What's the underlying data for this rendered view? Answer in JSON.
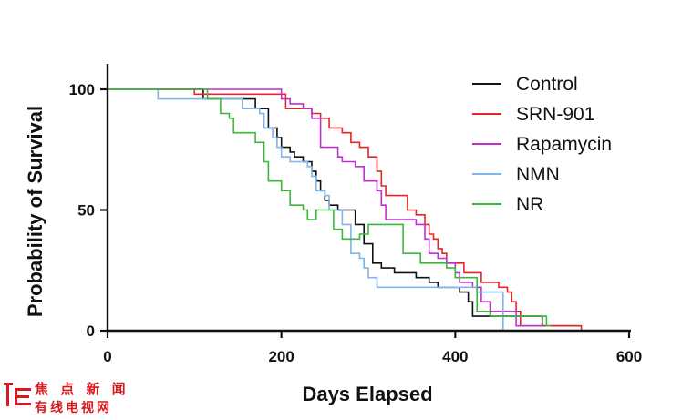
{
  "chart_data": {
    "type": "line",
    "subtype": "kaplan-meier-step",
    "title": "",
    "xlabel": "Days Elapsed",
    "ylabel": "Probability of Survival",
    "xlim": [
      0,
      600
    ],
    "ylim": [
      0,
      100
    ],
    "xticks": [
      "0",
      "200",
      "400",
      "600"
    ],
    "yticks": [
      "0",
      "50",
      "100"
    ],
    "grid": false,
    "legend_position": "top-right",
    "series": [
      {
        "name": "Control",
        "color": "#111111",
        "points": [
          [
            0,
            100
          ],
          [
            105,
            100
          ],
          [
            110,
            96
          ],
          [
            160,
            96
          ],
          [
            170,
            92
          ],
          [
            185,
            84
          ],
          [
            195,
            80
          ],
          [
            200,
            76
          ],
          [
            210,
            74
          ],
          [
            215,
            72
          ],
          [
            225,
            70
          ],
          [
            235,
            66
          ],
          [
            240,
            62
          ],
          [
            245,
            58
          ],
          [
            250,
            54
          ],
          [
            255,
            52
          ],
          [
            265,
            50
          ],
          [
            280,
            50
          ],
          [
            285,
            44
          ],
          [
            295,
            36
          ],
          [
            305,
            28
          ],
          [
            315,
            26
          ],
          [
            330,
            24
          ],
          [
            355,
            22
          ],
          [
            370,
            20
          ],
          [
            380,
            18
          ],
          [
            405,
            16
          ],
          [
            415,
            12
          ],
          [
            420,
            6
          ],
          [
            490,
            6
          ],
          [
            500,
            2
          ],
          [
            540,
            2
          ]
        ]
      },
      {
        "name": "SRN-901",
        "color": "#e8232a",
        "points": [
          [
            0,
            100
          ],
          [
            95,
            100
          ],
          [
            100,
            98
          ],
          [
            195,
            98
          ],
          [
            205,
            92
          ],
          [
            235,
            90
          ],
          [
            245,
            88
          ],
          [
            255,
            84
          ],
          [
            270,
            82
          ],
          [
            280,
            78
          ],
          [
            290,
            76
          ],
          [
            300,
            72
          ],
          [
            310,
            66
          ],
          [
            315,
            60
          ],
          [
            320,
            56
          ],
          [
            345,
            50
          ],
          [
            355,
            48
          ],
          [
            365,
            44
          ],
          [
            370,
            40
          ],
          [
            375,
            38
          ],
          [
            380,
            34
          ],
          [
            385,
            32
          ],
          [
            390,
            28
          ],
          [
            395,
            28
          ],
          [
            410,
            24
          ],
          [
            425,
            24
          ],
          [
            430,
            20
          ],
          [
            445,
            20
          ],
          [
            450,
            18
          ],
          [
            460,
            16
          ],
          [
            465,
            12
          ],
          [
            470,
            8
          ],
          [
            475,
            2
          ],
          [
            540,
            2
          ],
          [
            545,
            0
          ]
        ]
      },
      {
        "name": "Rapamycin",
        "color": "#c22fd0",
        "points": [
          [
            0,
            100
          ],
          [
            105,
            100
          ],
          [
            195,
            100
          ],
          [
            200,
            96
          ],
          [
            210,
            94
          ],
          [
            225,
            92
          ],
          [
            235,
            88
          ],
          [
            245,
            76
          ],
          [
            265,
            72
          ],
          [
            270,
            70
          ],
          [
            285,
            68
          ],
          [
            295,
            62
          ],
          [
            310,
            58
          ],
          [
            315,
            52
          ],
          [
            320,
            46
          ],
          [
            350,
            46
          ],
          [
            355,
            44
          ],
          [
            365,
            38
          ],
          [
            370,
            32
          ],
          [
            380,
            30
          ],
          [
            390,
            28
          ],
          [
            400,
            24
          ],
          [
            405,
            20
          ],
          [
            420,
            18
          ],
          [
            430,
            12
          ],
          [
            440,
            8
          ],
          [
            465,
            8
          ],
          [
            470,
            2
          ],
          [
            500,
            2
          ]
        ]
      },
      {
        "name": "NMN",
        "color": "#7fb5e8",
        "points": [
          [
            0,
            100
          ],
          [
            55,
            100
          ],
          [
            58,
            96
          ],
          [
            150,
            96
          ],
          [
            155,
            92
          ],
          [
            175,
            90
          ],
          [
            180,
            84
          ],
          [
            190,
            80
          ],
          [
            195,
            76
          ],
          [
            200,
            72
          ],
          [
            210,
            70
          ],
          [
            230,
            68
          ],
          [
            235,
            64
          ],
          [
            240,
            58
          ],
          [
            250,
            56
          ],
          [
            255,
            50
          ],
          [
            270,
            44
          ],
          [
            280,
            32
          ],
          [
            290,
            30
          ],
          [
            295,
            26
          ],
          [
            300,
            22
          ],
          [
            310,
            18
          ],
          [
            420,
            18
          ],
          [
            425,
            16
          ],
          [
            450,
            16
          ],
          [
            455,
            0
          ]
        ]
      },
      {
        "name": "NR",
        "color": "#3cb83c",
        "points": [
          [
            0,
            100
          ],
          [
            110,
            100
          ],
          [
            115,
            96
          ],
          [
            130,
            90
          ],
          [
            140,
            88
          ],
          [
            145,
            82
          ],
          [
            160,
            82
          ],
          [
            170,
            78
          ],
          [
            180,
            70
          ],
          [
            185,
            62
          ],
          [
            200,
            58
          ],
          [
            210,
            52
          ],
          [
            225,
            50
          ],
          [
            230,
            46
          ],
          [
            240,
            50
          ],
          [
            255,
            50
          ],
          [
            260,
            42
          ],
          [
            270,
            38
          ],
          [
            290,
            40
          ],
          [
            300,
            44
          ],
          [
            310,
            44
          ],
          [
            335,
            44
          ],
          [
            340,
            32
          ],
          [
            360,
            28
          ],
          [
            390,
            26
          ],
          [
            400,
            22
          ],
          [
            420,
            22
          ],
          [
            425,
            8
          ],
          [
            440,
            6
          ],
          [
            500,
            6
          ],
          [
            505,
            2
          ],
          [
            510,
            2
          ]
        ]
      }
    ]
  },
  "watermark": {
    "line1": "焦 点 新 闻",
    "line2": "有线电视网"
  }
}
